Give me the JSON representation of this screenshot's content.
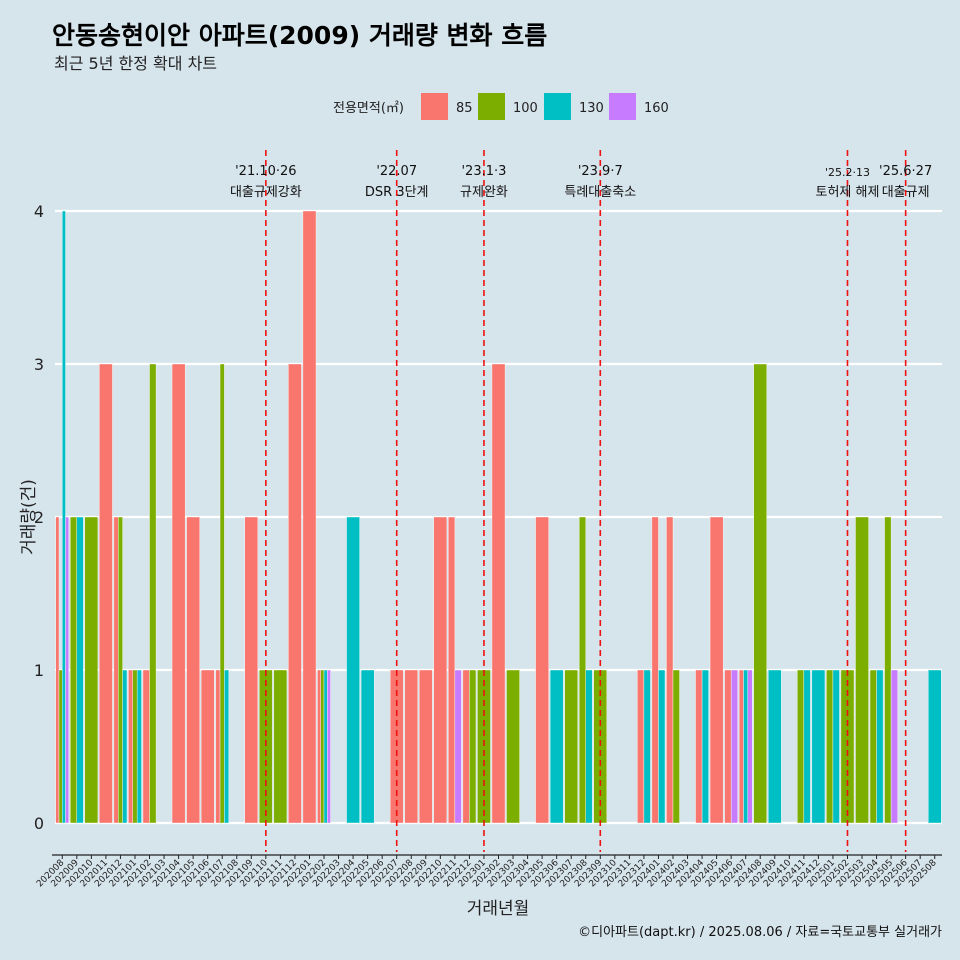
{
  "chart_data": {
    "type": "bar",
    "title": "안동송현이안 아파트(2009) 거래량 변화 흐름",
    "subtitle": "최근 5년 한정 확대 차트",
    "xlabel": "거래년월",
    "ylabel": "거래량(건)",
    "ylim": [
      0,
      4
    ],
    "yticks": [
      "0",
      "1",
      "2",
      "3",
      "4"
    ],
    "grid": true,
    "legend": {
      "title": "전용면적(㎡)",
      "position": "top",
      "entries": [
        {
          "name": "85",
          "color": "#F8766D"
        },
        {
          "name": "100",
          "color": "#7CAE00"
        },
        {
          "name": "130",
          "color": "#00BFC4"
        },
        {
          "name": "160",
          "color": "#C77CFF"
        }
      ]
    },
    "categories": [
      "202008",
      "202009",
      "202010",
      "202011",
      "202012",
      "202101",
      "202102",
      "202103",
      "202104",
      "202105",
      "202106",
      "202107",
      "202108",
      "202109",
      "202110",
      "202111",
      "202112",
      "202201",
      "202202",
      "202203",
      "202204",
      "202205",
      "202206",
      "202207",
      "202208",
      "202209",
      "202210",
      "202211",
      "202212",
      "202301",
      "202302",
      "202303",
      "202304",
      "202305",
      "202306",
      "202307",
      "202308",
      "202309",
      "202310",
      "202311",
      "202312",
      "202401",
      "202402",
      "202403",
      "202404",
      "202405",
      "202406",
      "202407",
      "202408",
      "202409",
      "202410",
      "202411",
      "202412",
      "202501",
      "202502",
      "202503",
      "202504",
      "202505",
      "202506",
      "202507",
      "202508"
    ],
    "series": [
      {
        "name": "85",
        "values": [
          2,
          0,
          0,
          3,
          2,
          1,
          1,
          0,
          3,
          2,
          1,
          1,
          0,
          2,
          0,
          0,
          3,
          4,
          1,
          0,
          0,
          0,
          0,
          1,
          1,
          1,
          2,
          2,
          1,
          0,
          3,
          0,
          0,
          2,
          0,
          0,
          0,
          0,
          0,
          0,
          1,
          2,
          2,
          0,
          1,
          2,
          1,
          1,
          0,
          0,
          0,
          0,
          0,
          0,
          0,
          0,
          0,
          0,
          0,
          0,
          0
        ]
      },
      {
        "name": "100",
        "values": [
          1,
          2,
          2,
          0,
          2,
          1,
          3,
          0,
          0,
          0,
          0,
          3,
          0,
          0,
          1,
          1,
          0,
          0,
          1,
          0,
          0,
          0,
          0,
          0,
          0,
          0,
          0,
          0,
          1,
          1,
          0,
          1,
          0,
          0,
          0,
          1,
          2,
          1,
          0,
          0,
          0,
          0,
          1,
          0,
          0,
          0,
          0,
          0,
          3,
          0,
          0,
          1,
          0,
          1,
          1,
          2,
          1,
          2,
          0,
          0,
          0
        ]
      },
      {
        "name": "130",
        "values": [
          4,
          2,
          0,
          0,
          1,
          1,
          0,
          0,
          0,
          0,
          0,
          1,
          0,
          0,
          0,
          0,
          0,
          0,
          1,
          0,
          2,
          1,
          0,
          0,
          0,
          0,
          0,
          0,
          0,
          0,
          0,
          0,
          0,
          0,
          1,
          0,
          1,
          0,
          0,
          0,
          1,
          1,
          0,
          0,
          1,
          0,
          0,
          1,
          0,
          1,
          0,
          1,
          1,
          1,
          0,
          0,
          1,
          0,
          0,
          0,
          1
        ]
      },
      {
        "name": "160",
        "values": [
          2,
          0,
          0,
          0,
          0,
          0,
          0,
          0,
          0,
          0,
          0,
          0,
          0,
          0,
          0,
          0,
          0,
          0,
          1,
          0,
          0,
          0,
          0,
          0,
          0,
          0,
          0,
          1,
          0,
          0,
          0,
          0,
          0,
          0,
          0,
          0,
          0,
          0,
          0,
          0,
          0,
          0,
          0,
          0,
          0,
          0,
          1,
          1,
          0,
          0,
          0,
          0,
          0,
          0,
          0,
          0,
          0,
          1,
          0,
          0,
          0
        ]
      }
    ],
    "annotations": [
      {
        "date": "'21.10·26",
        "label": "대출규제강화",
        "at": "202110"
      },
      {
        "date": "'22.07",
        "label": "DSR 3단계",
        "at": "202207"
      },
      {
        "date": "'23.1·3",
        "label": "규제완화",
        "at": "202301"
      },
      {
        "date": "'23.9·7",
        "label": "특례대출축소",
        "at": "202309"
      },
      {
        "date": "'25.2·13",
        "label": "토허제 해제",
        "at": "202502"
      },
      {
        "date": "'25.6·27",
        "label": "대출규제",
        "at": "202506"
      }
    ],
    "caption": "©디아파트(dapt.kr) / 2025.08.06 / 자료=국토교통부 실거래가"
  }
}
